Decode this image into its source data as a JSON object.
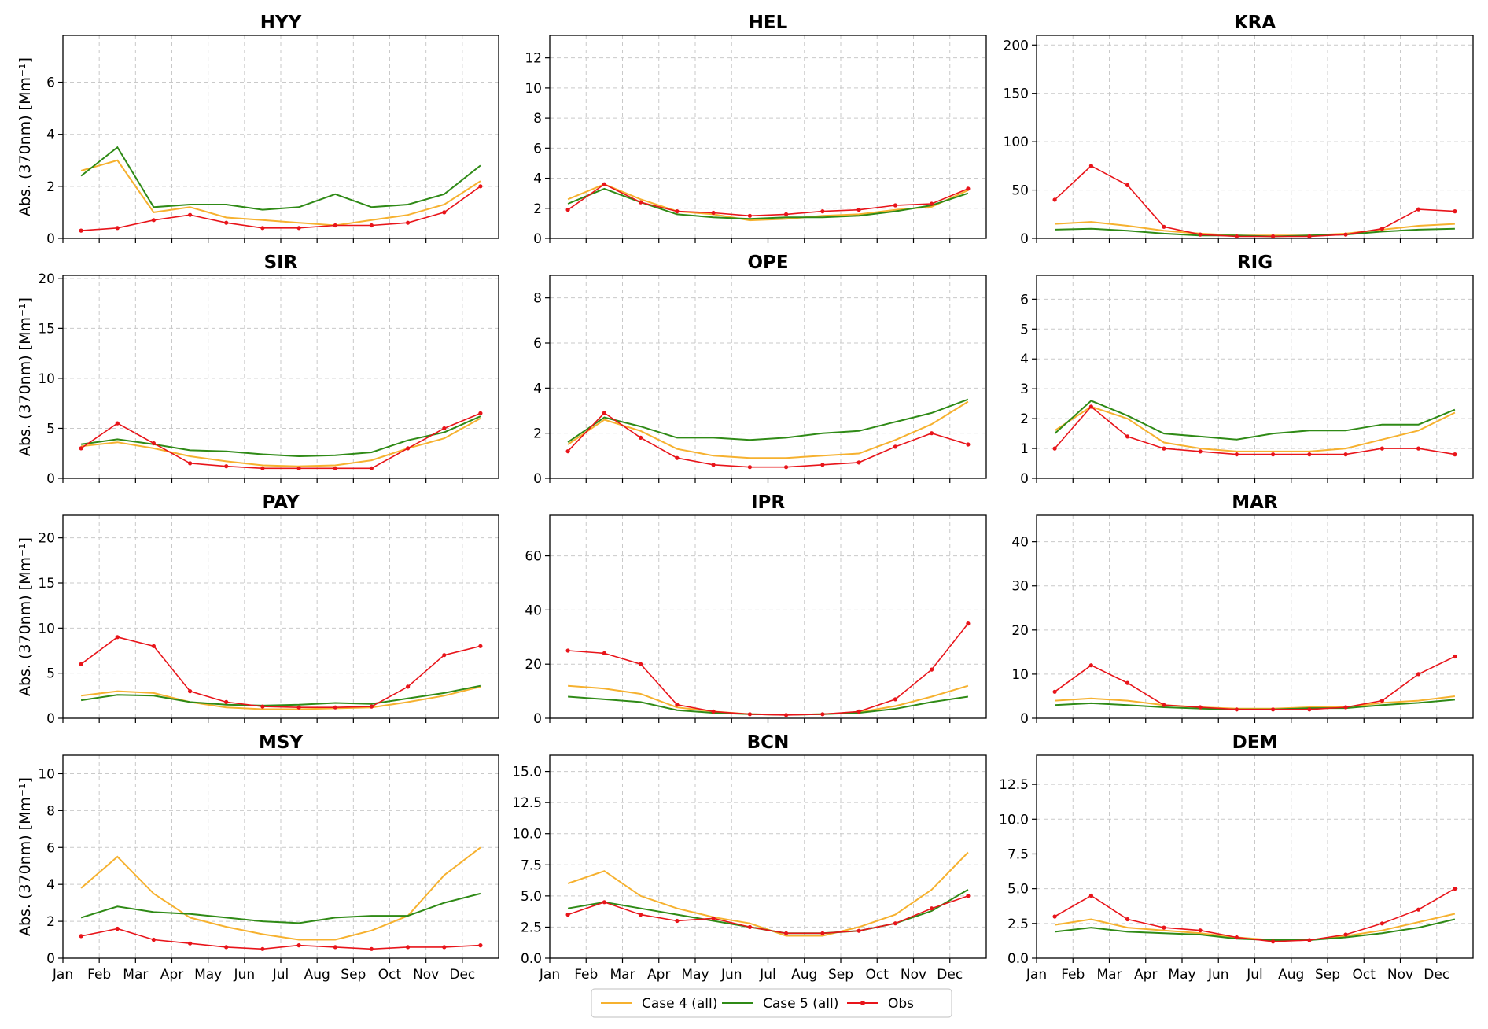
{
  "colors": {
    "case4": "#f6b12f",
    "case5": "#2f8a16",
    "obs": "#e8141a",
    "grid": "#c9c9c9"
  },
  "legend": [
    {
      "key": "case4",
      "label": "Case 4 (all)"
    },
    {
      "key": "case5",
      "label": "Case 5 (all)"
    },
    {
      "key": "obs",
      "label": "Obs"
    }
  ],
  "chart_data": [
    {
      "type": "line",
      "title": "HYY",
      "ylabel": "Abs. (370nm) [Mm⁻¹]",
      "ylim": [
        0,
        7.8
      ],
      "yticks": [
        0,
        2,
        4,
        6
      ],
      "x": [
        "Jan",
        "Feb",
        "Mar",
        "Apr",
        "May",
        "Jun",
        "Jul",
        "Aug",
        "Sep",
        "Oct",
        "Nov",
        "Dec"
      ],
      "series": [
        {
          "name": "Case 4 (all)",
          "key": "case4",
          "values": [
            2.6,
            3.0,
            1.0,
            1.2,
            0.8,
            0.7,
            0.6,
            0.5,
            0.7,
            0.9,
            1.3,
            2.2
          ]
        },
        {
          "name": "Case 5 (all)",
          "key": "case5",
          "values": [
            2.4,
            3.5,
            1.2,
            1.3,
            1.3,
            1.1,
            1.2,
            1.7,
            1.2,
            1.3,
            1.7,
            2.8
          ]
        },
        {
          "name": "Obs",
          "key": "obs",
          "values": [
            0.3,
            0.4,
            0.7,
            0.9,
            0.6,
            0.4,
            0.4,
            0.5,
            0.5,
            0.6,
            1.0,
            2.0
          ]
        }
      ]
    },
    {
      "type": "line",
      "title": "HEL",
      "ylabel": "",
      "ylim": [
        0,
        13.5
      ],
      "yticks": [
        0,
        2,
        4,
        6,
        8,
        10,
        12
      ],
      "x": [
        "Jan",
        "Feb",
        "Mar",
        "Apr",
        "May",
        "Jun",
        "Jul",
        "Aug",
        "Sep",
        "Oct",
        "Nov",
        "Dec"
      ],
      "series": [
        {
          "name": "Case 4 (all)",
          "key": "case4",
          "values": [
            2.6,
            3.6,
            2.6,
            1.8,
            1.6,
            1.2,
            1.3,
            1.5,
            1.6,
            1.9,
            2.1,
            3.2
          ]
        },
        {
          "name": "Case 5 (all)",
          "key": "case5",
          "values": [
            2.3,
            3.3,
            2.4,
            1.6,
            1.4,
            1.3,
            1.4,
            1.4,
            1.5,
            1.8,
            2.2,
            3.0
          ]
        },
        {
          "name": "Obs",
          "key": "obs",
          "values": [
            1.9,
            3.6,
            2.4,
            1.8,
            1.7,
            1.5,
            1.6,
            1.8,
            1.9,
            2.2,
            2.3,
            3.3
          ]
        }
      ]
    },
    {
      "type": "line",
      "title": "KRA",
      "ylabel": "",
      "ylim": [
        0,
        210
      ],
      "yticks": [
        0,
        50,
        100,
        150,
        200
      ],
      "x": [
        "Jan",
        "Feb",
        "Mar",
        "Apr",
        "May",
        "Jun",
        "Jul",
        "Aug",
        "Sep",
        "Oct",
        "Nov",
        "Dec"
      ],
      "series": [
        {
          "name": "Case 4 (all)",
          "key": "case4",
          "values": [
            15,
            17,
            13,
            8,
            5,
            3,
            3,
            3,
            5,
            9,
            13,
            15
          ]
        },
        {
          "name": "Case 5 (all)",
          "key": "case5",
          "values": [
            9,
            10,
            8,
            5,
            3,
            3,
            2,
            3,
            4,
            7,
            9,
            10
          ]
        },
        {
          "name": "Obs",
          "key": "obs",
          "values": [
            40,
            75,
            55,
            12,
            4,
            2,
            2,
            2,
            4,
            10,
            30,
            28
          ]
        }
      ]
    },
    {
      "type": "line",
      "title": "SIR",
      "ylabel": "Abs. (370nm) [Mm⁻¹]",
      "ylim": [
        0,
        20.3
      ],
      "yticks": [
        0,
        5,
        10,
        15,
        20
      ],
      "x": [
        "Jan",
        "Feb",
        "Mar",
        "Apr",
        "May",
        "Jun",
        "Jul",
        "Aug",
        "Sep",
        "Oct",
        "Nov",
        "Dec"
      ],
      "series": [
        {
          "name": "Case 4 (all)",
          "key": "case4",
          "values": [
            3.2,
            3.6,
            3.0,
            2.2,
            1.7,
            1.3,
            1.2,
            1.3,
            1.8,
            3.0,
            4.0,
            6.0
          ]
        },
        {
          "name": "Case 5 (all)",
          "key": "case5",
          "values": [
            3.4,
            3.9,
            3.4,
            2.8,
            2.7,
            2.4,
            2.2,
            2.3,
            2.6,
            3.8,
            4.6,
            6.2
          ]
        },
        {
          "name": "Obs",
          "key": "obs",
          "values": [
            3.0,
            5.5,
            3.5,
            1.5,
            1.2,
            1.0,
            1.0,
            1.0,
            1.0,
            3.0,
            5.0,
            6.5
          ]
        }
      ]
    },
    {
      "type": "line",
      "title": "OPE",
      "ylabel": "",
      "ylim": [
        0,
        9.0
      ],
      "yticks": [
        0,
        2,
        4,
        6,
        8
      ],
      "x": [
        "Jan",
        "Feb",
        "Mar",
        "Apr",
        "May",
        "Jun",
        "Jul",
        "Aug",
        "Sep",
        "Oct",
        "Nov",
        "Dec"
      ],
      "series": [
        {
          "name": "Case 4 (all)",
          "key": "case4",
          "values": [
            1.5,
            2.6,
            2.1,
            1.3,
            1.0,
            0.9,
            0.9,
            1.0,
            1.1,
            1.7,
            2.4,
            3.4
          ]
        },
        {
          "name": "Case 5 (all)",
          "key": "case5",
          "values": [
            1.6,
            2.7,
            2.3,
            1.8,
            1.8,
            1.7,
            1.8,
            2.0,
            2.1,
            2.5,
            2.9,
            3.5
          ]
        },
        {
          "name": "Obs",
          "key": "obs",
          "values": [
            1.2,
            2.9,
            1.8,
            0.9,
            0.6,
            0.5,
            0.5,
            0.6,
            0.7,
            1.4,
            2.0,
            1.5
          ]
        }
      ]
    },
    {
      "type": "line",
      "title": "RIG",
      "ylabel": "",
      "ylim": [
        0,
        6.8
      ],
      "yticks": [
        0,
        1,
        2,
        3,
        4,
        5,
        6
      ],
      "x": [
        "Jan",
        "Feb",
        "Mar",
        "Apr",
        "May",
        "Jun",
        "Jul",
        "Aug",
        "Sep",
        "Oct",
        "Nov",
        "Dec"
      ],
      "series": [
        {
          "name": "Case 4 (all)",
          "key": "case4",
          "values": [
            1.6,
            2.4,
            2.0,
            1.2,
            1.0,
            0.9,
            0.9,
            0.9,
            1.0,
            1.3,
            1.6,
            2.2
          ]
        },
        {
          "name": "Case 5 (all)",
          "key": "case5",
          "values": [
            1.5,
            2.6,
            2.1,
            1.5,
            1.4,
            1.3,
            1.5,
            1.6,
            1.6,
            1.8,
            1.8,
            2.3
          ]
        },
        {
          "name": "Obs",
          "key": "obs",
          "values": [
            1.0,
            2.4,
            1.4,
            1.0,
            0.9,
            0.8,
            0.8,
            0.8,
            0.8,
            1.0,
            1.0,
            0.8
          ]
        }
      ]
    },
    {
      "type": "line",
      "title": "PAY",
      "ylabel": "Abs. (370nm) [Mm⁻¹]",
      "ylim": [
        0,
        22.5
      ],
      "yticks": [
        0,
        5,
        10,
        15,
        20
      ],
      "x": [
        "Jan",
        "Feb",
        "Mar",
        "Apr",
        "May",
        "Jun",
        "Jul",
        "Aug",
        "Sep",
        "Oct",
        "Nov",
        "Dec"
      ],
      "series": [
        {
          "name": "Case 4 (all)",
          "key": "case4",
          "values": [
            2.5,
            3.0,
            2.8,
            1.8,
            1.2,
            1.0,
            1.0,
            1.1,
            1.2,
            1.8,
            2.5,
            3.5
          ]
        },
        {
          "name": "Case 5 (all)",
          "key": "case5",
          "values": [
            2.0,
            2.6,
            2.5,
            1.8,
            1.5,
            1.4,
            1.5,
            1.7,
            1.6,
            2.2,
            2.8,
            3.6
          ]
        },
        {
          "name": "Obs",
          "key": "obs",
          "values": [
            6.0,
            9.0,
            8.0,
            3.0,
            1.8,
            1.3,
            1.2,
            1.2,
            1.3,
            3.5,
            7.0,
            8.0
          ]
        }
      ]
    },
    {
      "type": "line",
      "title": "IPR",
      "ylabel": "",
      "ylim": [
        0,
        75
      ],
      "yticks": [
        0,
        20,
        40,
        60
      ],
      "x": [
        "Jan",
        "Feb",
        "Mar",
        "Apr",
        "May",
        "Jun",
        "Jul",
        "Aug",
        "Sep",
        "Oct",
        "Nov",
        "Dec"
      ],
      "series": [
        {
          "name": "Case 4 (all)",
          "key": "case4",
          "values": [
            12,
            11,
            9,
            4,
            2.5,
            1.5,
            1.3,
            1.5,
            2.2,
            4.5,
            8.0,
            12.0
          ]
        },
        {
          "name": "Case 5 (all)",
          "key": "case5",
          "values": [
            8,
            7,
            6,
            3,
            2,
            1.5,
            1.3,
            1.5,
            2.0,
            3.5,
            6.0,
            8.0
          ]
        },
        {
          "name": "Obs",
          "key": "obs",
          "values": [
            25,
            24,
            20,
            5,
            2.5,
            1.5,
            1.2,
            1.5,
            2.5,
            7.0,
            18.0,
            35.0
          ]
        }
      ]
    },
    {
      "type": "line",
      "title": "MAR",
      "ylabel": "",
      "ylim": [
        0,
        46
      ],
      "yticks": [
        0,
        10,
        20,
        30,
        40
      ],
      "x": [
        "Jan",
        "Feb",
        "Mar",
        "Apr",
        "May",
        "Jun",
        "Jul",
        "Aug",
        "Sep",
        "Oct",
        "Nov",
        "Dec"
      ],
      "series": [
        {
          "name": "Case 4 (all)",
          "key": "case4",
          "values": [
            4.0,
            4.5,
            4.0,
            3.0,
            2.5,
            2.2,
            2.2,
            2.5,
            2.5,
            3.5,
            4.0,
            5.0
          ]
        },
        {
          "name": "Case 5 (all)",
          "key": "case5",
          "values": [
            3.0,
            3.4,
            3.0,
            2.5,
            2.2,
            2.0,
            2.0,
            2.3,
            2.3,
            3.0,
            3.5,
            4.2
          ]
        },
        {
          "name": "Obs",
          "key": "obs",
          "values": [
            6.0,
            12.0,
            8.0,
            3.0,
            2.5,
            2.0,
            2.0,
            2.0,
            2.5,
            4.0,
            10.0,
            14.0
          ]
        }
      ]
    },
    {
      "type": "line",
      "title": "MSY",
      "ylabel": "Abs. (370nm) [Mm⁻¹]",
      "ylim": [
        0,
        11.0
      ],
      "yticks": [
        0,
        2,
        4,
        6,
        8,
        10
      ],
      "x": [
        "Jan",
        "Feb",
        "Mar",
        "Apr",
        "May",
        "Jun",
        "Jul",
        "Aug",
        "Sep",
        "Oct",
        "Nov",
        "Dec"
      ],
      "series": [
        {
          "name": "Case 4 (all)",
          "key": "case4",
          "values": [
            3.8,
            5.5,
            3.5,
            2.2,
            1.7,
            1.3,
            1.0,
            1.0,
            1.5,
            2.3,
            4.5,
            6.0
          ]
        },
        {
          "name": "Case 5 (all)",
          "key": "case5",
          "values": [
            2.2,
            2.8,
            2.5,
            2.4,
            2.2,
            2.0,
            1.9,
            2.2,
            2.3,
            2.3,
            3.0,
            3.5
          ]
        },
        {
          "name": "Obs",
          "key": "obs",
          "values": [
            1.2,
            1.6,
            1.0,
            0.8,
            0.6,
            0.5,
            0.7,
            0.6,
            0.5,
            0.6,
            0.6,
            0.7
          ]
        }
      ]
    },
    {
      "type": "line",
      "title": "BCN",
      "ylabel": "",
      "ylim": [
        0,
        16.3
      ],
      "yticks": [
        0,
        2.5,
        5,
        7.5,
        10,
        12.5,
        15
      ],
      "x": [
        "Jan",
        "Feb",
        "Mar",
        "Apr",
        "May",
        "Jun",
        "Jul",
        "Aug",
        "Sep",
        "Oct",
        "Nov",
        "Dec"
      ],
      "series": [
        {
          "name": "Case 4 (all)",
          "key": "case4",
          "values": [
            6.0,
            7.0,
            5.0,
            4.0,
            3.3,
            2.8,
            1.8,
            1.8,
            2.5,
            3.5,
            5.5,
            8.5
          ]
        },
        {
          "name": "Case 5 (all)",
          "key": "case5",
          "values": [
            4.0,
            4.5,
            4.0,
            3.5,
            3.0,
            2.5,
            2.0,
            2.0,
            2.2,
            2.8,
            3.8,
            5.5
          ]
        },
        {
          "name": "Obs",
          "key": "obs",
          "values": [
            3.5,
            4.5,
            3.5,
            3.0,
            3.2,
            2.5,
            2.0,
            2.0,
            2.2,
            2.8,
            4.0,
            5.0
          ]
        }
      ]
    },
    {
      "type": "line",
      "title": "DEM",
      "ylabel": "",
      "ylim": [
        0,
        14.6
      ],
      "yticks": [
        0,
        2.5,
        5,
        7.5,
        10,
        12.5
      ],
      "x": [
        "Jan",
        "Feb",
        "Mar",
        "Apr",
        "May",
        "Jun",
        "Jul",
        "Aug",
        "Sep",
        "Oct",
        "Nov",
        "Dec"
      ],
      "series": [
        {
          "name": "Case 4 (all)",
          "key": "case4",
          "values": [
            2.4,
            2.8,
            2.2,
            2.0,
            1.8,
            1.5,
            1.3,
            1.3,
            1.6,
            2.0,
            2.6,
            3.2
          ]
        },
        {
          "name": "Case 5 (all)",
          "key": "case5",
          "values": [
            1.9,
            2.2,
            1.9,
            1.8,
            1.7,
            1.4,
            1.3,
            1.3,
            1.5,
            1.8,
            2.2,
            2.8
          ]
        },
        {
          "name": "Obs",
          "key": "obs",
          "values": [
            3.0,
            4.5,
            2.8,
            2.2,
            2.0,
            1.5,
            1.2,
            1.3,
            1.7,
            2.5,
            3.5,
            5.0
          ]
        }
      ]
    }
  ]
}
